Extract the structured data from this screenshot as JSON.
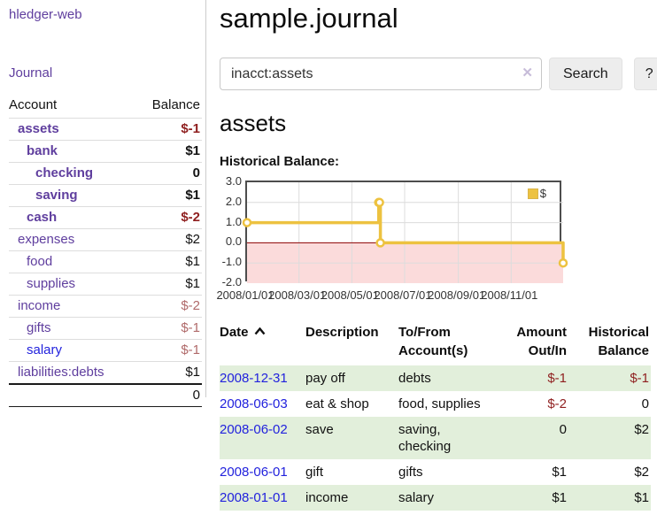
{
  "app": {
    "title": "hledger-web"
  },
  "colors": {
    "purple": "#5f3e9e",
    "blue": "#2222dd",
    "neg": "#8f1f1f",
    "neg_soft": "#b06a6a",
    "stripe": "#e2efdb",
    "gold": "#EDC240",
    "pink": "#fbdbdb",
    "zeroline": "#8b0000",
    "grid": "#dcdcdc"
  },
  "sidebar": {
    "journal_link": "Journal",
    "accounts_header": {
      "account": "Account",
      "balance": "Balance"
    },
    "accounts": [
      {
        "label": "assets",
        "indent": 1,
        "bold": true,
        "balance": "$-1",
        "neg": "strong"
      },
      {
        "label": "bank",
        "indent": 2,
        "bold": true,
        "balance": "$1"
      },
      {
        "label": "checking",
        "indent": 3,
        "bold": true,
        "balance": "0"
      },
      {
        "label": "saving",
        "indent": 3,
        "bold": true,
        "balance": "$1"
      },
      {
        "label": "cash",
        "indent": 2,
        "bold": true,
        "balance": "$-2",
        "neg": "strong"
      },
      {
        "label": "expenses",
        "indent": 1,
        "bold": false,
        "balance": "$2"
      },
      {
        "label": "food",
        "indent": 2,
        "bold": false,
        "balance": "$1"
      },
      {
        "label": "supplies",
        "indent": 2,
        "bold": false,
        "balance": "$1"
      },
      {
        "label": "income",
        "indent": 1,
        "bold": false,
        "balance": "$-2",
        "neg": "soft"
      },
      {
        "label": "gifts",
        "indent": 2,
        "bold": false,
        "balance": "$-1",
        "neg": "soft"
      },
      {
        "label": "salary",
        "indent": 2,
        "bold": false,
        "balance": "$-1",
        "neg": "soft",
        "link_color": "blue"
      },
      {
        "label": "liabilities:debts",
        "indent": 1,
        "bold": false,
        "balance": "$1"
      }
    ],
    "total": "0"
  },
  "header": {
    "title": "sample.journal"
  },
  "search": {
    "value": "inacct:assets",
    "clear_icon": "✕",
    "button": "Search",
    "help_button": "?"
  },
  "main": {
    "heading": "assets",
    "chart_label": "Historical Balance:"
  },
  "chart_data": {
    "type": "line",
    "step": true,
    "title": "Historical Balance",
    "xrange": [
      "2008-01-01",
      "2008-12-31"
    ],
    "ylim": [
      -2,
      3
    ],
    "series": [
      {
        "name": "$",
        "points": [
          [
            "2008-01-01",
            1
          ],
          [
            "2008-06-01",
            2
          ],
          [
            "2008-06-02",
            2
          ],
          [
            "2008-06-03",
            0
          ],
          [
            "2008-12-31",
            -1
          ]
        ]
      }
    ],
    "x_ticks": [
      {
        "date": "2008-01-01",
        "label": "2008/01/01"
      },
      {
        "date": "2008-03-01",
        "label": "2008/03/01"
      },
      {
        "date": "2008-05-01",
        "label": "2008/05/01"
      },
      {
        "date": "2008-07-01",
        "label": "2008/07/01"
      },
      {
        "date": "2008-09-01",
        "label": "2008/09/01"
      },
      {
        "date": "2008-11-01",
        "label": "2008/11/01"
      }
    ],
    "y_ticks": [
      {
        "v": 3,
        "label": "3.0"
      },
      {
        "v": 2,
        "label": "2.0"
      },
      {
        "v": 1,
        "label": "1.0"
      },
      {
        "v": 0,
        "label": "0.0"
      },
      {
        "v": -1,
        "label": "-1.0"
      },
      {
        "v": -2,
        "label": "-2.0"
      }
    ],
    "legend": "$",
    "legend_position": "top-right",
    "grid": true
  },
  "register": {
    "headers": {
      "date": "Date",
      "description": "Description",
      "accounts": "To/From Account(s)",
      "amount": "Amount Out/In",
      "balance": "Historical Balance"
    },
    "rows": [
      {
        "date": "2008-12-31",
        "description": "pay off",
        "accounts": "debts",
        "amount": "$-1",
        "amount_neg": true,
        "balance": "$-1",
        "balance_neg": true,
        "shade": true
      },
      {
        "date": "2008-06-03",
        "description": "eat & shop",
        "accounts": "food, supplies",
        "amount": "$-2",
        "amount_neg": true,
        "balance": "0",
        "balance_neg": false,
        "shade": false
      },
      {
        "date": "2008-06-02",
        "description": "save",
        "accounts": "saving, checking",
        "amount": "0",
        "amount_neg": false,
        "balance": "$2",
        "balance_neg": false,
        "shade": true
      },
      {
        "date": "2008-06-01",
        "description": "gift",
        "accounts": "gifts",
        "amount": "$1",
        "amount_neg": false,
        "balance": "$2",
        "balance_neg": false,
        "shade": false
      },
      {
        "date": "2008-01-01",
        "description": "income",
        "accounts": "salary",
        "amount": "$1",
        "amount_neg": false,
        "balance": "$1",
        "balance_neg": false,
        "shade": true
      }
    ]
  }
}
